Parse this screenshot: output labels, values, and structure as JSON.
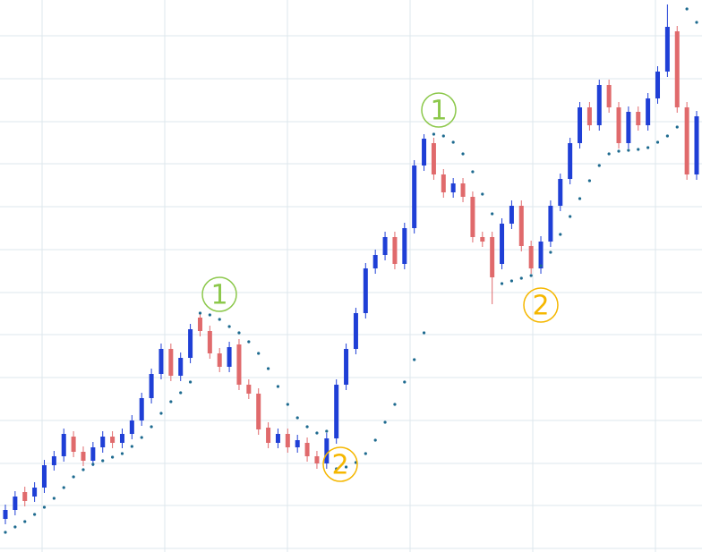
{
  "chart_data": {
    "type": "candlestick",
    "ylim": [
      0,
      617
    ],
    "yticks": [
      4,
      52,
      99,
      147,
      195,
      243,
      290,
      338,
      386,
      434,
      481,
      529,
      577
    ],
    "grid": true,
    "up_color": "#1f3fd6",
    "down_color": "#e06a6c",
    "sar_color": "#1d6a8f",
    "open": [
      37,
      47,
      67,
      62,
      72,
      97,
      107,
      129,
      112,
      102,
      117,
      129,
      122,
      132,
      147,
      172,
      199,
      227,
      197,
      217,
      262,
      247,
      222,
      207,
      232,
      187,
      177,
      139,
      122,
      132,
      117,
      122,
      107,
      99,
      127,
      187,
      227,
      267,
      317,
      332,
      352,
      322,
      362,
      432,
      457,
      422,
      402,
      412,
      397,
      352,
      352,
      322,
      367,
      387,
      342,
      317,
      347,
      387,
      417,
      457,
      497,
      477,
      522,
      497,
      457,
      492,
      477,
      507,
      537,
      582,
      497,
      422
    ],
    "high": [
      53,
      68,
      73,
      78,
      103,
      113,
      138,
      135,
      118,
      123,
      135,
      135,
      138,
      153,
      178,
      205,
      233,
      233,
      223,
      255,
      267,
      253,
      228,
      235,
      238,
      193,
      183,
      145,
      138,
      138,
      131,
      128,
      113,
      133,
      193,
      233,
      273,
      323,
      338,
      358,
      358,
      368,
      438,
      467,
      463,
      428,
      418,
      418,
      403,
      358,
      358,
      373,
      393,
      393,
      348,
      353,
      393,
      423,
      463,
      503,
      503,
      528,
      528,
      503,
      498,
      498,
      513,
      543,
      612,
      588,
      503,
      493
    ],
    "low": [
      31,
      41,
      51,
      56,
      66,
      91,
      101,
      106,
      96,
      96,
      111,
      116,
      116,
      126,
      141,
      166,
      193,
      191,
      191,
      211,
      241,
      216,
      201,
      201,
      181,
      171,
      131,
      116,
      116,
      111,
      111,
      101,
      93,
      93,
      121,
      181,
      221,
      261,
      311,
      326,
      316,
      316,
      356,
      426,
      416,
      396,
      396,
      391,
      346,
      341,
      277,
      316,
      361,
      336,
      311,
      311,
      341,
      381,
      411,
      451,
      471,
      471,
      491,
      451,
      451,
      471,
      471,
      501,
      531,
      491,
      416,
      416
    ],
    "close": [
      47,
      62,
      57,
      72,
      97,
      107,
      132,
      112,
      102,
      117,
      129,
      122,
      132,
      147,
      172,
      199,
      227,
      197,
      217,
      249,
      247,
      222,
      207,
      229,
      187,
      177,
      137,
      122,
      132,
      117,
      125,
      107,
      99,
      127,
      187,
      227,
      267,
      317,
      332,
      352,
      322,
      362,
      432,
      462,
      422,
      402,
      412,
      397,
      352,
      347,
      307,
      367,
      387,
      342,
      317,
      347,
      387,
      417,
      457,
      497,
      477,
      522,
      497,
      457,
      492,
      477,
      507,
      537,
      587,
      497,
      422,
      487
    ],
    "sar": [
      22,
      28,
      34,
      42,
      50,
      60,
      72,
      84,
      92,
      98,
      102,
      106,
      110,
      118,
      128,
      140,
      155,
      168,
      178,
      190,
      267,
      265,
      260,
      252,
      245,
      235,
      222,
      205,
      185,
      165,
      150,
      140,
      133,
      135,
      93,
      95,
      100,
      110,
      125,
      145,
      165,
      190,
      215,
      245,
      467,
      465,
      458,
      445,
      425,
      400,
      378,
      300,
      303,
      306,
      309,
      320,
      335,
      355,
      375,
      395,
      415,
      432,
      445,
      448,
      449,
      450,
      452,
      458,
      465,
      475,
      607,
      592
    ],
    "annotations": [
      {
        "label": "1",
        "color": "#8cc84b"
      },
      {
        "label": "1",
        "color": "#8cc84b"
      },
      {
        "label": "2",
        "color": "#f5b700"
      },
      {
        "label": "2",
        "color": "#f5b700"
      }
    ]
  }
}
